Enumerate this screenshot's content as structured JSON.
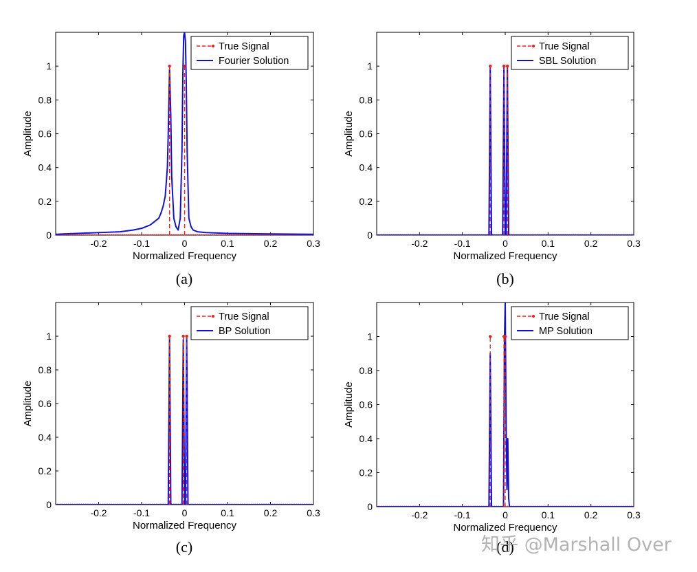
{
  "colors": {
    "true_signal": "#e8201e",
    "solution": "#1010d8",
    "axis": "#000000"
  },
  "watermark": "知乎 @Marshall Over",
  "chart_data": [
    {
      "type": "line",
      "caption": "(a)",
      "xlabel": "Normalized Frequency",
      "ylabel": "Amplitude",
      "xlim": [
        -0.3,
        0.3
      ],
      "ylim": [
        0,
        1.2
      ],
      "xticks": [
        -0.2,
        -0.1,
        0,
        0.1,
        0.2,
        0.3
      ],
      "xtick_labels": [
        "-0.2",
        "-0.1",
        "0",
        "0.1",
        "0.2",
        "0.3"
      ],
      "yticks": [
        0,
        0.2,
        0.4,
        0.6,
        0.8,
        1
      ],
      "ytick_labels": [
        "0",
        "0.2",
        "0.4",
        "0.6",
        "0.8",
        "1"
      ],
      "legend": [
        "True Signal",
        "Fourier Solution"
      ],
      "series": [
        {
          "name": "True Signal",
          "style": "dashed-stem",
          "x": [
            -0.035,
            0.0
          ],
          "y": [
            1.0,
            1.0
          ]
        },
        {
          "name": "Fourier Solution",
          "style": "line",
          "x": [
            -0.3,
            -0.25,
            -0.2,
            -0.15,
            -0.12,
            -0.1,
            -0.09,
            -0.08,
            -0.07,
            -0.06,
            -0.055,
            -0.05,
            -0.045,
            -0.04,
            -0.038,
            -0.035,
            -0.032,
            -0.03,
            -0.025,
            -0.02,
            -0.015,
            -0.01,
            -0.006,
            -0.004,
            -0.002,
            0.0,
            0.002,
            0.004,
            0.006,
            0.01,
            0.015,
            0.02,
            0.03,
            0.05,
            0.1,
            0.2,
            0.3
          ],
          "y": [
            0.005,
            0.01,
            0.015,
            0.02,
            0.03,
            0.04,
            0.05,
            0.06,
            0.08,
            0.1,
            0.13,
            0.17,
            0.23,
            0.4,
            0.6,
            0.98,
            0.7,
            0.35,
            0.1,
            0.05,
            0.03,
            0.1,
            0.5,
            0.95,
            1.18,
            1.2,
            1.15,
            0.9,
            0.5,
            0.1,
            0.05,
            0.03,
            0.02,
            0.015,
            0.01,
            0.007,
            0.005
          ]
        }
      ]
    },
    {
      "type": "line",
      "caption": "(b)",
      "xlabel": "Normalized Frequency",
      "ylabel": "Amplitude",
      "xlim": [
        -0.3,
        0.3
      ],
      "ylim": [
        0,
        1.2
      ],
      "xticks": [
        -0.2,
        -0.1,
        0,
        0.1,
        0.2,
        0.3
      ],
      "xtick_labels": [
        "-0.2",
        "-0.1",
        "0",
        "0.1",
        "0.2",
        "0.3"
      ],
      "yticks": [
        0,
        0.2,
        0.4,
        0.6,
        0.8,
        1
      ],
      "ytick_labels": [
        "0",
        "0.2",
        "0.4",
        "0.6",
        "0.8",
        "1"
      ],
      "legend": [
        "True Signal",
        "SBL Solution"
      ],
      "series": [
        {
          "name": "True Signal",
          "style": "dashed-stem",
          "x": [
            -0.035,
            -0.003,
            0.005
          ],
          "y": [
            1.0,
            1.0,
            1.0
          ]
        },
        {
          "name": "SBL Solution",
          "style": "line",
          "x": [
            -0.3,
            -0.038,
            -0.035,
            -0.032,
            -0.006,
            -0.003,
            0.0,
            0.002,
            0.005,
            0.008,
            0.3
          ],
          "y": [
            0.0,
            0.0,
            1.0,
            0.0,
            0.0,
            1.0,
            0.0,
            0.0,
            1.0,
            0.0,
            0.0
          ]
        }
      ]
    },
    {
      "type": "line",
      "caption": "(c)",
      "xlabel": "Normalized Frequency",
      "ylabel": "Amplitude",
      "xlim": [
        -0.3,
        0.3
      ],
      "ylim": [
        0,
        1.2
      ],
      "xticks": [
        -0.2,
        -0.1,
        0,
        0.1,
        0.2,
        0.3
      ],
      "xtick_labels": [
        "-0.2",
        "-0.1",
        "0",
        "0.1",
        "0.2",
        "0.3"
      ],
      "yticks": [
        0,
        0.2,
        0.4,
        0.6,
        0.8,
        1
      ],
      "ytick_labels": [
        "0",
        "0.2",
        "0.4",
        "0.6",
        "0.8",
        "1"
      ],
      "legend": [
        "True Signal",
        "BP Solution"
      ],
      "series": [
        {
          "name": "True Signal",
          "style": "dashed-stem",
          "x": [
            -0.035,
            -0.003,
            0.005
          ],
          "y": [
            1.0,
            1.0,
            1.0
          ]
        },
        {
          "name": "BP Solution",
          "style": "line",
          "x": [
            -0.3,
            -0.038,
            -0.035,
            -0.032,
            -0.006,
            -0.003,
            0.0,
            0.002,
            0.005,
            0.008,
            0.3
          ],
          "y": [
            0.0,
            0.0,
            0.99,
            0.0,
            0.0,
            0.98,
            0.0,
            0.0,
            0.99,
            0.0,
            0.0
          ]
        }
      ]
    },
    {
      "type": "line",
      "caption": "(d)",
      "xlabel": "Normalized Frequency",
      "ylabel": "Amplitude",
      "xlim": [
        -0.3,
        0.3
      ],
      "ylim": [
        0,
        1.2
      ],
      "xticks": [
        -0.2,
        -0.1,
        0,
        0.1,
        0.2,
        0.3
      ],
      "xtick_labels": [
        "-0.2",
        "-0.1",
        "0",
        "0.1",
        "0.2",
        "0.3"
      ],
      "yticks": [
        0,
        0.2,
        0.4,
        0.6,
        0.8,
        1
      ],
      "ytick_labels": [
        "0",
        "0.2",
        "0.4",
        "0.6",
        "0.8",
        "1"
      ],
      "legend": [
        "True Signal",
        "MP Solution"
      ],
      "series": [
        {
          "name": "True Signal",
          "style": "dashed-stem",
          "x": [
            -0.035,
            -0.003,
            0.0
          ],
          "y": [
            1.0,
            1.0,
            1.0
          ]
        },
        {
          "name": "MP Solution",
          "style": "line",
          "x": [
            -0.3,
            -0.038,
            -0.035,
            -0.032,
            -0.004,
            -0.002,
            0.0,
            0.002,
            0.004,
            0.006,
            0.008,
            0.01,
            0.3
          ],
          "y": [
            0.0,
            0.0,
            0.9,
            0.0,
            0.0,
            0.95,
            1.2,
            0.5,
            0.1,
            0.4,
            0.05,
            0.0,
            0.0
          ]
        }
      ]
    }
  ]
}
